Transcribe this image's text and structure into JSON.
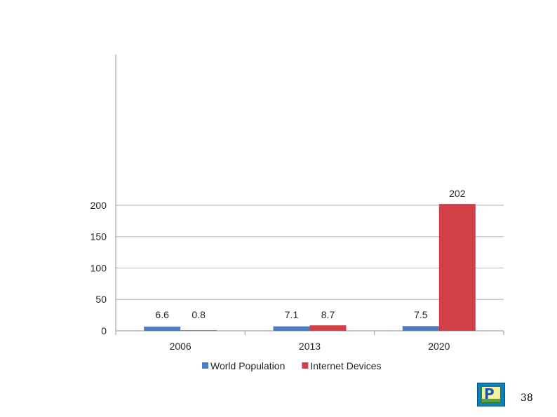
{
  "chart_data": {
    "type": "bar",
    "title": "",
    "xlabel": "",
    "ylabel": "",
    "categories": [
      "2006",
      "2013",
      "2020"
    ],
    "series": [
      {
        "name": "World Population",
        "values": [
          6.6,
          7.1,
          7.5
        ],
        "labels": [
          "6.6",
          "7.1",
          "7.5"
        ],
        "color": "#4a7dc4"
      },
      {
        "name": "Internet Devices",
        "values": [
          0.8,
          8.7,
          202
        ],
        "labels": [
          "0.8",
          "8.7",
          "202"
        ],
        "color": "#d04046"
      }
    ],
    "ylim": [
      0,
      220
    ],
    "yticks": [
      0,
      50,
      100,
      150,
      200
    ],
    "ytick_labels": [
      "0",
      "50",
      "100",
      "150",
      "200"
    ],
    "grid": true,
    "legend_position": "bottom"
  },
  "footer": {
    "page_number": "38",
    "logo_icon": "presentation-logo-icon"
  }
}
